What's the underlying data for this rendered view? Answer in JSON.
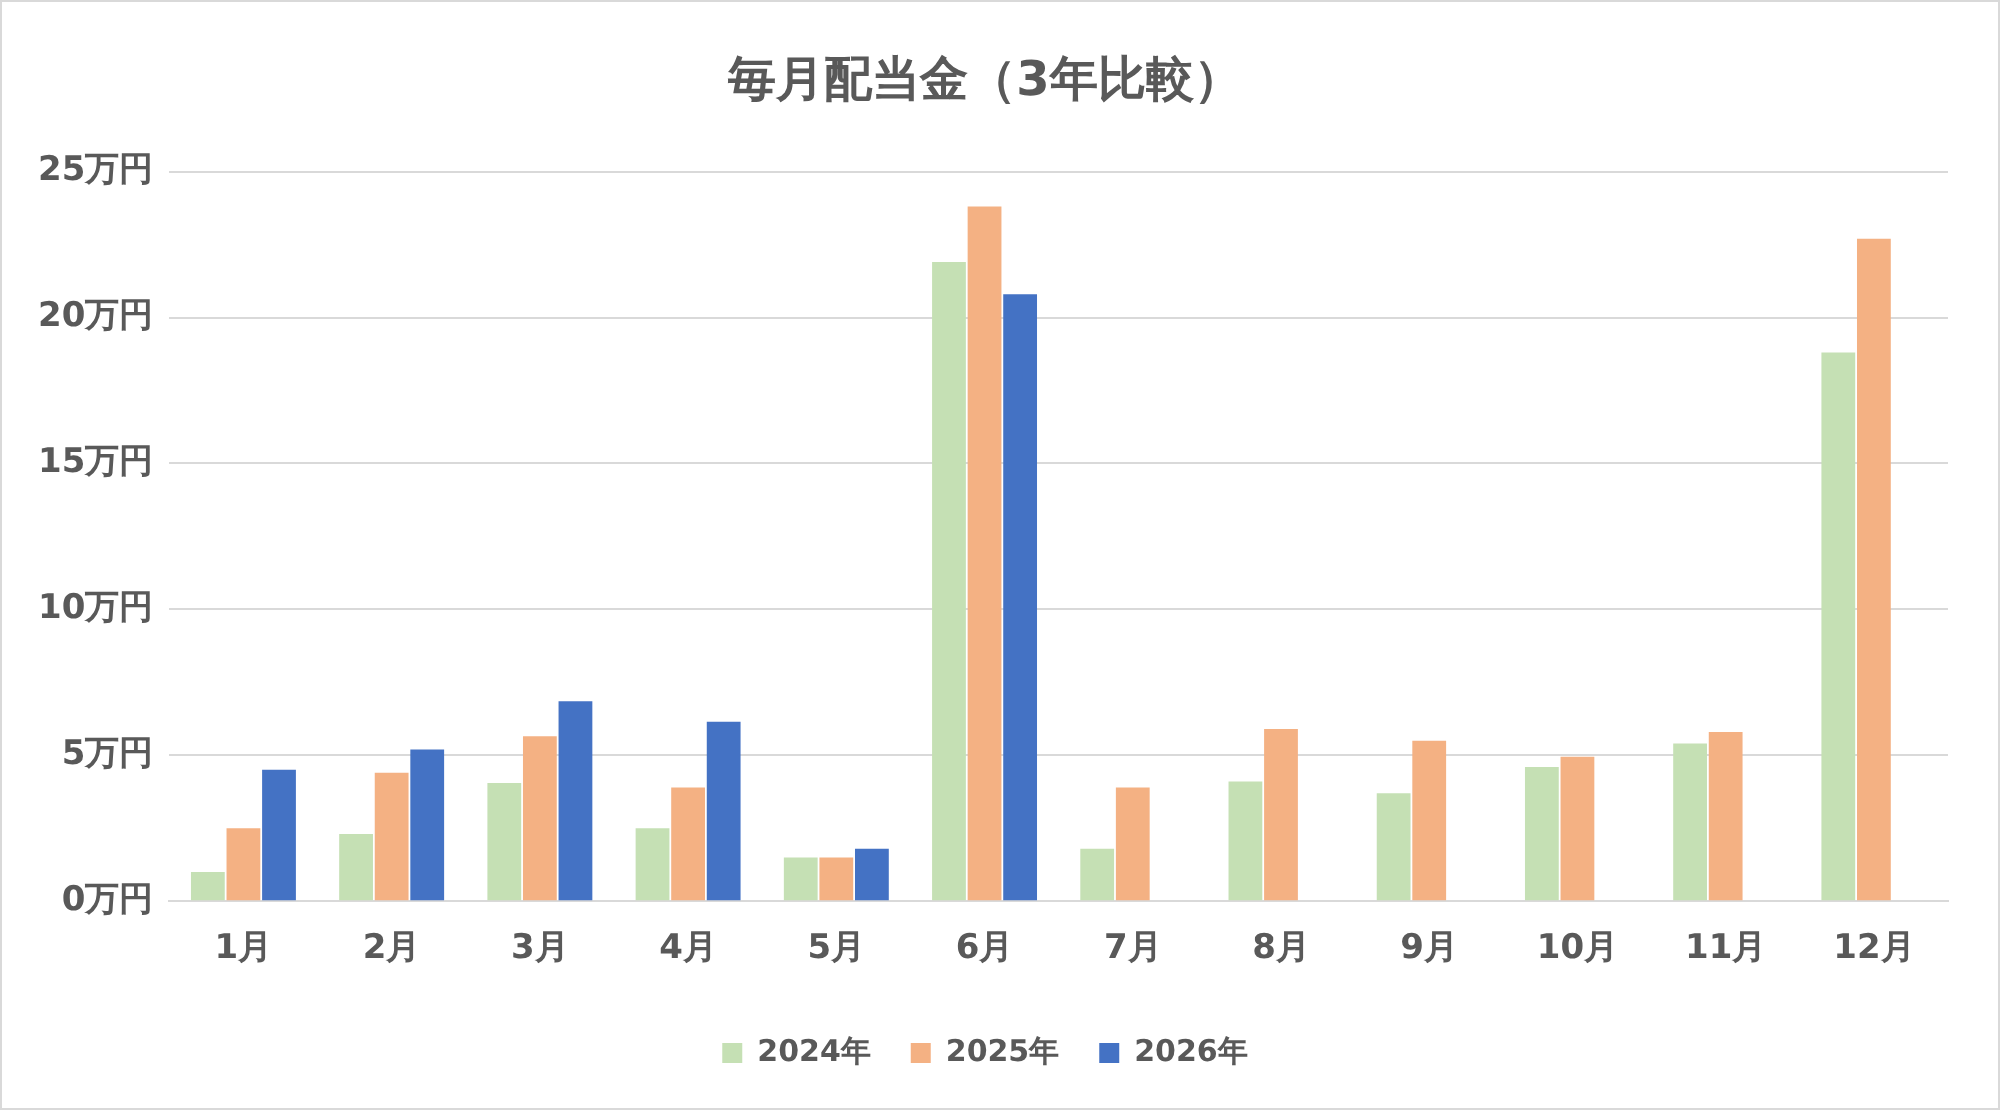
{
  "chart_data": {
    "type": "bar",
    "title": "毎月配当金（3年比較）",
    "categories": [
      "1月",
      "2月",
      "3月",
      "4月",
      "5月",
      "6月",
      "7月",
      "8月",
      "9月",
      "10月",
      "11月",
      "12月"
    ],
    "series": [
      {
        "name": "2024年",
        "color": "#c5e0b4",
        "values": [
          1.0,
          2.3,
          4.05,
          2.5,
          1.5,
          21.9,
          1.8,
          4.1,
          3.7,
          4.6,
          5.4,
          18.8
        ]
      },
      {
        "name": "2025年",
        "color": "#f4b183",
        "values": [
          2.5,
          4.4,
          5.65,
          3.9,
          1.5,
          23.8,
          3.9,
          5.9,
          5.5,
          4.95,
          5.8,
          22.7
        ]
      },
      {
        "name": "2026年",
        "color": "#4472c4",
        "values": [
          4.5,
          5.2,
          6.85,
          6.15,
          1.8,
          20.8,
          null,
          null,
          null,
          null,
          null,
          null
        ]
      }
    ],
    "ylim": [
      0,
      25
    ],
    "yticks": [
      {
        "value": 0,
        "label": "0万円"
      },
      {
        "value": 5,
        "label": "5万円"
      },
      {
        "value": 10,
        "label": "10万円"
      },
      {
        "value": 15,
        "label": "15万円"
      },
      {
        "value": 20,
        "label": "20万円"
      },
      {
        "value": 25,
        "label": "25万円"
      }
    ],
    "grid": "y",
    "legend": "bottom"
  }
}
